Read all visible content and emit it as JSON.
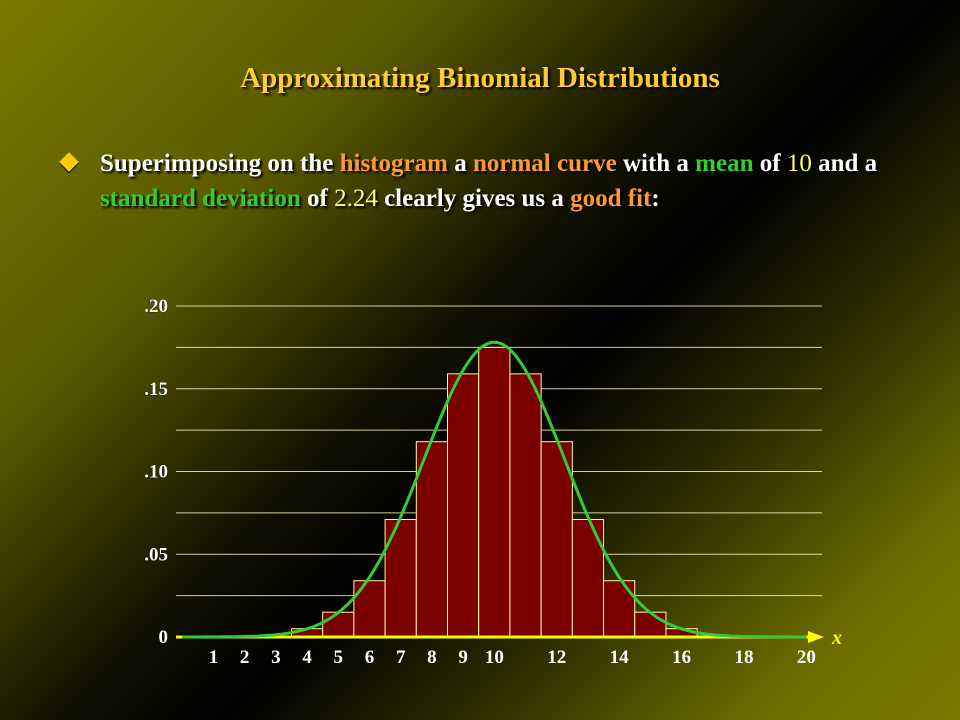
{
  "title": "Approximating Binomial Distributions",
  "bullet": {
    "icon": "diamond-bullet-icon",
    "parts": [
      {
        "text": "Superimposing on the ",
        "style": "plain"
      },
      {
        "text": "histogram",
        "style": "orange"
      },
      {
        "text": " a ",
        "style": "plain"
      },
      {
        "text": "normal curve",
        "style": "orange"
      },
      {
        "text": " with a ",
        "style": "plain"
      },
      {
        "text": "mean",
        "style": "green"
      },
      {
        "text": " of ",
        "style": "plain"
      },
      {
        "text": "10",
        "style": "yellow"
      },
      {
        "text": " and a ",
        "style": "plain"
      },
      {
        "text": "standard deviation",
        "style": "green"
      },
      {
        "text": " of ",
        "style": "plain"
      },
      {
        "text": "2.24",
        "style": "yellow"
      },
      {
        "text": " clearly gives us a ",
        "style": "plain"
      },
      {
        "text": "good fit",
        "style": "orange"
      },
      {
        "text": ":",
        "style": "plain"
      }
    ]
  },
  "colors": {
    "title": "#FFCC33",
    "bar_fill": "#7A0000",
    "bar_stroke": "#FFFF99",
    "curve": "#33CC33",
    "axis": "#FFFF00",
    "grid": "#FFFFCC",
    "tick_label": "#FFFFFF",
    "orange": "#FF9933",
    "green": "#33CC33",
    "yellow": "#FFFF66"
  },
  "chart_data": {
    "type": "bar",
    "x_axis_label": "x",
    "y_ticks": [
      {
        "value": 0,
        "label": "0"
      },
      {
        "value": 0.05,
        "label": ".05"
      },
      {
        "value": 0.1,
        "label": ".10"
      },
      {
        "value": 0.15,
        "label": ".15"
      },
      {
        "value": 0.2,
        "label": ".20"
      }
    ],
    "ylim": [
      0,
      0.2
    ],
    "xlim": [
      -0.2,
      20.5
    ],
    "grid_step": 0.025,
    "x_tick_labels": [
      1,
      2,
      3,
      4,
      5,
      6,
      7,
      8,
      9,
      10,
      12,
      14,
      16,
      18,
      20
    ],
    "bars": [
      {
        "x": 4,
        "value": 0.005
      },
      {
        "x": 5,
        "value": 0.015
      },
      {
        "x": 6,
        "value": 0.034
      },
      {
        "x": 7,
        "value": 0.071
      },
      {
        "x": 8,
        "value": 0.118
      },
      {
        "x": 9,
        "value": 0.159
      },
      {
        "x": 10,
        "value": 0.175
      },
      {
        "x": 11,
        "value": 0.159
      },
      {
        "x": 12,
        "value": 0.118
      },
      {
        "x": 13,
        "value": 0.071
      },
      {
        "x": 14,
        "value": 0.034
      },
      {
        "x": 15,
        "value": 0.015
      },
      {
        "x": 16,
        "value": 0.005
      }
    ],
    "normal_curve": {
      "mean": 10,
      "sd": 2.24,
      "x_range": [
        0,
        20
      ]
    }
  }
}
